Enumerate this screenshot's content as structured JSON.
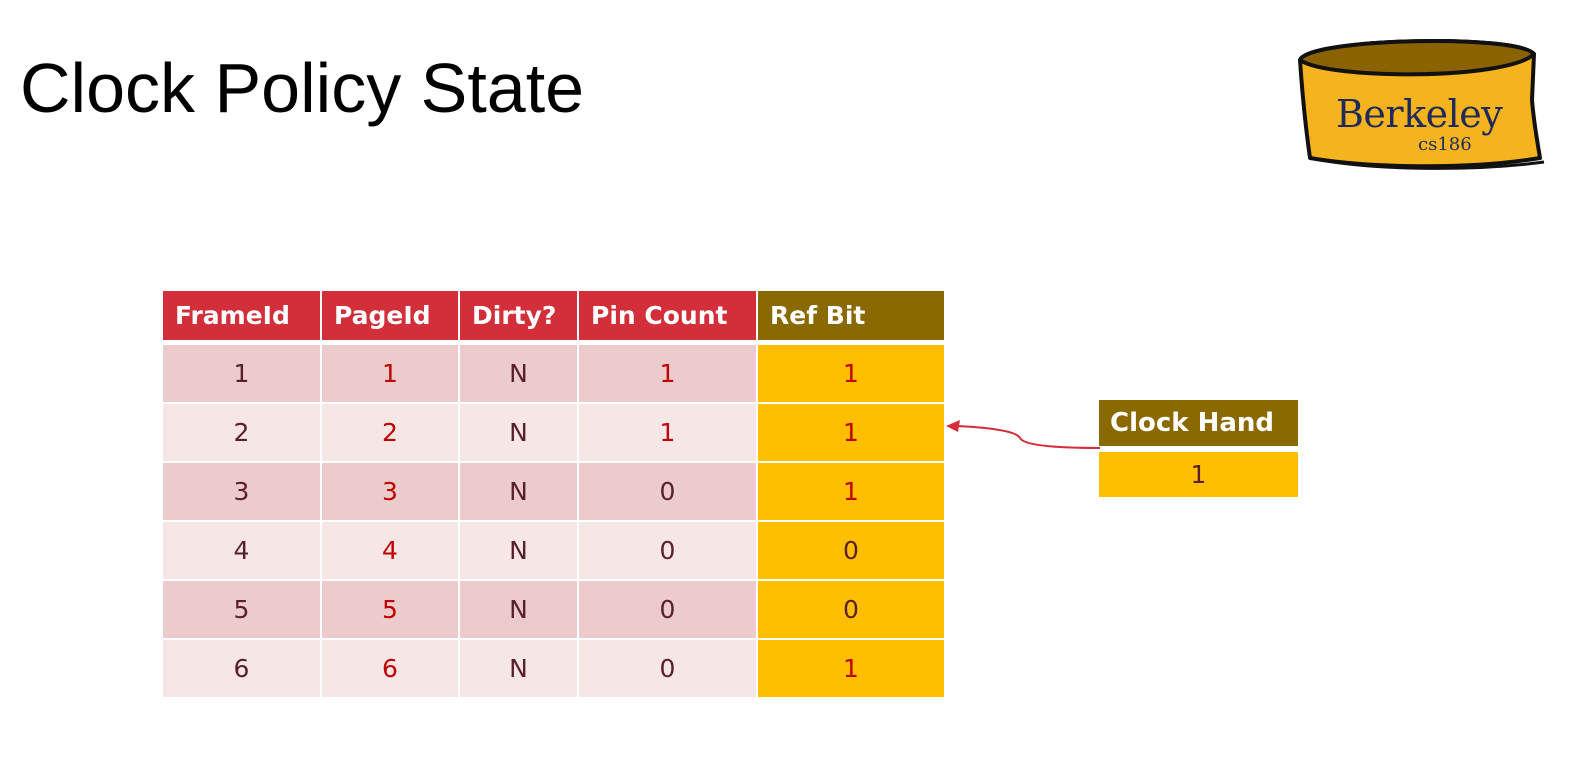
{
  "slide": {
    "title": "Clock Policy State"
  },
  "logo": {
    "text": "Berkeley",
    "subtext": "cs186",
    "colors": {
      "fill": "#f5b41e",
      "outline": "#111111",
      "text": "#1f2a5a"
    }
  },
  "buffer_table": {
    "headers": {
      "frame_id": "FrameId",
      "page_id": "PageId",
      "dirty": "Dirty?",
      "pin_count": "Pin Count",
      "ref_bit": "Ref Bit"
    },
    "rows": [
      {
        "frame_id": "1",
        "page_id": "1",
        "dirty": "N",
        "pin_count": "1",
        "ref_bit": "1"
      },
      {
        "frame_id": "2",
        "page_id": "2",
        "dirty": "N",
        "pin_count": "1",
        "ref_bit": "1"
      },
      {
        "frame_id": "3",
        "page_id": "3",
        "dirty": "N",
        "pin_count": "0",
        "ref_bit": "1"
      },
      {
        "frame_id": "4",
        "page_id": "4",
        "dirty": "N",
        "pin_count": "0",
        "ref_bit": "0"
      },
      {
        "frame_id": "5",
        "page_id": "5",
        "dirty": "N",
        "pin_count": "0",
        "ref_bit": "0"
      },
      {
        "frame_id": "6",
        "page_id": "6",
        "dirty": "N",
        "pin_count": "0",
        "ref_bit": "1"
      }
    ],
    "colors": {
      "header": "#d32f3a",
      "ref_header": "#8a6a00",
      "row_odd": "#eccbcc",
      "row_even": "#f6e6e6",
      "ref_cell": "#ffbf00",
      "highlight_text": "#c00000"
    }
  },
  "clock_hand": {
    "label": "Clock Hand",
    "value": "1",
    "points_to_row": 2,
    "arrow_color": "#d32f3a"
  }
}
